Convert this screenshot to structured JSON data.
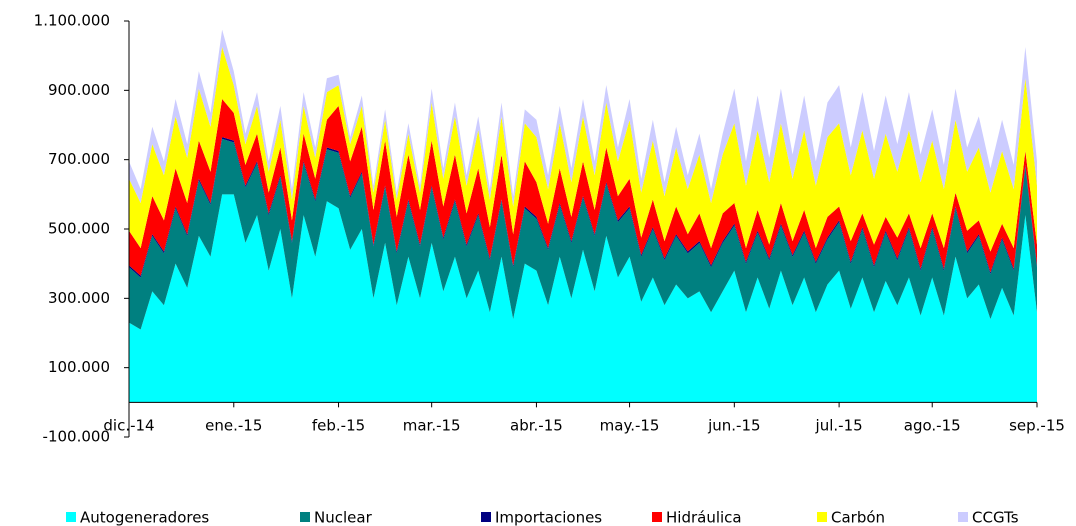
{
  "chart_data": {
    "type": "stacked_area",
    "categories": [
      "dic.-14",
      null,
      null,
      null,
      null,
      null,
      null,
      null,
      null,
      "ene.-15",
      null,
      null,
      null,
      null,
      null,
      null,
      null,
      null,
      "feb.-15",
      null,
      null,
      null,
      null,
      null,
      null,
      null,
      "mar.-15",
      null,
      null,
      null,
      null,
      null,
      null,
      null,
      null,
      "abr.-15",
      null,
      null,
      null,
      null,
      null,
      null,
      null,
      "may.-15",
      null,
      null,
      null,
      null,
      null,
      null,
      null,
      null,
      "jun.-15",
      null,
      null,
      null,
      null,
      null,
      null,
      null,
      null,
      "jul.-15",
      null,
      null,
      null,
      null,
      null,
      null,
      null,
      "ago.-15",
      null,
      null,
      null,
      null,
      null,
      null,
      null,
      null,
      "sep.-15"
    ],
    "series": [
      {
        "name": "Autogeneradores",
        "color": "#00ffff",
        "values": [
          230000,
          210000,
          320000,
          280000,
          400000,
          330000,
          480000,
          420000,
          600000,
          600000,
          460000,
          540000,
          380000,
          500000,
          300000,
          540000,
          420000,
          580000,
          560000,
          440000,
          500000,
          300000,
          460000,
          280000,
          420000,
          300000,
          460000,
          320000,
          420000,
          300000,
          380000,
          260000,
          420000,
          240000,
          400000,
          380000,
          280000,
          420000,
          300000,
          440000,
          320000,
          480000,
          360000,
          420000,
          290000,
          360000,
          280000,
          340000,
          300000,
          320000,
          260000,
          320000,
          380000,
          260000,
          360000,
          270000,
          380000,
          280000,
          360000,
          260000,
          340000,
          380000,
          270000,
          360000,
          260000,
          350000,
          280000,
          360000,
          250000,
          360000,
          250000,
          420000,
          300000,
          340000,
          240000,
          330000,
          250000,
          540000,
          260000
        ]
      },
      {
        "name": "Nuclear",
        "color": "#008080",
        "values": [
          160000,
          150000,
          160000,
          150000,
          160000,
          150000,
          160000,
          150000,
          160000,
          150000,
          160000,
          150000,
          160000,
          150000,
          160000,
          150000,
          160000,
          150000,
          160000,
          150000,
          160000,
          150000,
          160000,
          150000,
          160000,
          150000,
          160000,
          150000,
          160000,
          150000,
          160000,
          150000,
          160000,
          150000,
          160000,
          150000,
          160000,
          150000,
          160000,
          150000,
          160000,
          150000,
          160000,
          140000,
          130000,
          140000,
          130000,
          140000,
          130000,
          140000,
          130000,
          140000,
          130000,
          140000,
          130000,
          140000,
          130000,
          140000,
          130000,
          140000,
          130000,
          140000,
          130000,
          140000,
          130000,
          140000,
          130000,
          140000,
          130000,
          140000,
          130000,
          140000,
          130000,
          140000,
          130000,
          140000,
          130000,
          140000,
          130000
        ]
      },
      {
        "name": "Importaciones",
        "color": "#000080",
        "values": [
          5000,
          5000,
          5000,
          5000,
          5000,
          5000,
          5000,
          5000,
          5000,
          5000,
          5000,
          5000,
          5000,
          5000,
          5000,
          5000,
          5000,
          5000,
          5000,
          5000,
          5000,
          5000,
          5000,
          5000,
          5000,
          5000,
          5000,
          5000,
          5000,
          5000,
          5000,
          5000,
          5000,
          5000,
          5000,
          5000,
          5000,
          5000,
          5000,
          5000,
          5000,
          5000,
          5000,
          5000,
          5000,
          5000,
          5000,
          5000,
          5000,
          5000,
          5000,
          5000,
          5000,
          5000,
          5000,
          5000,
          5000,
          5000,
          5000,
          5000,
          5000,
          5000,
          5000,
          5000,
          5000,
          5000,
          5000,
          5000,
          5000,
          5000,
          5000,
          5000,
          5000,
          5000,
          5000,
          5000,
          5000,
          5000,
          5000
        ]
      },
      {
        "name": "Hidráulica",
        "color": "#ff0000",
        "values": [
          100000,
          80000,
          110000,
          90000,
          110000,
          90000,
          110000,
          90000,
          110000,
          80000,
          60000,
          80000,
          60000,
          80000,
          60000,
          80000,
          60000,
          80000,
          130000,
          100000,
          130000,
          100000,
          130000,
          100000,
          130000,
          100000,
          130000,
          90000,
          130000,
          90000,
          130000,
          90000,
          130000,
          90000,
          130000,
          100000,
          70000,
          100000,
          70000,
          100000,
          70000,
          100000,
          70000,
          80000,
          50000,
          80000,
          50000,
          80000,
          50000,
          80000,
          50000,
          80000,
          60000,
          40000,
          60000,
          40000,
          60000,
          40000,
          60000,
          40000,
          60000,
          40000,
          60000,
          40000,
          60000,
          40000,
          60000,
          40000,
          60000,
          40000,
          60000,
          40000,
          60000,
          40000,
          60000,
          40000,
          60000,
          40000,
          60000
        ]
      },
      {
        "name": "Carbón",
        "color": "#ffff00",
        "values": [
          150000,
          130000,
          150000,
          130000,
          150000,
          130000,
          150000,
          130000,
          150000,
          80000,
          60000,
          80000,
          60000,
          80000,
          60000,
          80000,
          60000,
          80000,
          60000,
          50000,
          60000,
          50000,
          60000,
          50000,
          60000,
          50000,
          110000,
          80000,
          110000,
          80000,
          110000,
          80000,
          110000,
          80000,
          110000,
          130000,
          100000,
          130000,
          100000,
          130000,
          100000,
          130000,
          100000,
          170000,
          130000,
          170000,
          130000,
          170000,
          130000,
          170000,
          130000,
          170000,
          230000,
          180000,
          230000,
          180000,
          230000,
          180000,
          230000,
          180000,
          230000,
          240000,
          190000,
          240000,
          190000,
          240000,
          190000,
          240000,
          190000,
          210000,
          170000,
          210000,
          170000,
          210000,
          170000,
          210000,
          170000,
          210000,
          170000
        ]
      },
      {
        "name": "CCGTs",
        "color": "#ccccff",
        "values": [
          50000,
          40000,
          50000,
          40000,
          50000,
          40000,
          50000,
          40000,
          50000,
          40000,
          30000,
          40000,
          30000,
          40000,
          30000,
          40000,
          30000,
          40000,
          30000,
          20000,
          30000,
          20000,
          30000,
          20000,
          30000,
          20000,
          40000,
          30000,
          40000,
          30000,
          40000,
          30000,
          40000,
          30000,
          40000,
          50000,
          40000,
          50000,
          40000,
          50000,
          40000,
          50000,
          40000,
          60000,
          40000,
          60000,
          40000,
          60000,
          40000,
          60000,
          40000,
          60000,
          100000,
          70000,
          100000,
          70000,
          100000,
          70000,
          100000,
          70000,
          100000,
          110000,
          80000,
          110000,
          80000,
          110000,
          80000,
          110000,
          80000,
          90000,
          70000,
          90000,
          70000,
          90000,
          70000,
          90000,
          70000,
          90000,
          70000
        ]
      }
    ],
    "ylim": [
      -100000,
      1100000
    ],
    "yticks": [
      {
        "value": -100000,
        "label": "-100.000"
      },
      {
        "value": 100000,
        "label": "100.000"
      },
      {
        "value": 300000,
        "label": "300.000"
      },
      {
        "value": 500000,
        "label": "500.000"
      },
      {
        "value": 700000,
        "label": "700.000"
      },
      {
        "value": 900000,
        "label": "900.000"
      },
      {
        "value": 1100000,
        "label": "1.100.000"
      }
    ],
    "grid": false,
    "legend_position": "bottom"
  }
}
